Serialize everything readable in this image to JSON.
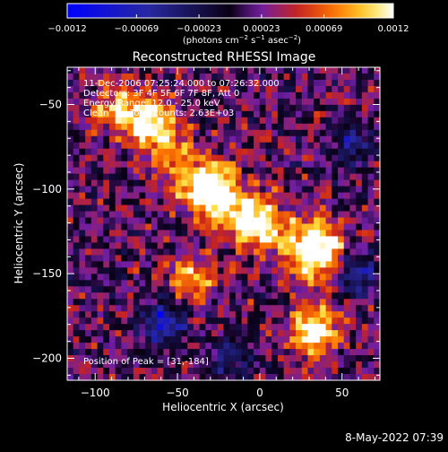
{
  "chart_data": {
    "type": "heatmap",
    "title": "Reconstructed RHESSI Image",
    "xlabel": "Heliocentric X (arcsec)",
    "ylabel": "Heliocentric Y (arcsec)",
    "xlim": [
      -117,
      73
    ],
    "ylim": [
      -213,
      -28
    ],
    "x_ticks": [
      -100,
      -50,
      0,
      50
    ],
    "y_ticks": [
      -200,
      -150,
      -100,
      -50
    ],
    "x_tick_labels": [
      "−100",
      "−50",
      "0",
      "50"
    ],
    "y_tick_labels": [
      "−200",
      "−150",
      "−100",
      "−50"
    ],
    "grid": false,
    "colorbar": {
      "min": -0.0012,
      "max": 0.0012,
      "ticks": [
        -0.0012,
        -0.00069,
        -0.00023,
        0.00023,
        0.00069,
        0.0012
      ],
      "tick_labels": [
        "−0.0012",
        "−0.00069",
        "−0.00023",
        "0.00023",
        "0.00069",
        "0.0012"
      ],
      "unit_parts": [
        "(photons cm",
        "−2",
        " s",
        "−1",
        " asec",
        "−2",
        ")"
      ],
      "colormap": [
        "#0000ff",
        "#000000",
        "#6b1da8",
        "#c8221e",
        "#ff7a00",
        "#ffffff"
      ]
    },
    "peak": {
      "x": 31,
      "y": -184
    },
    "features": {
      "ridge": [
        [
          -62,
          -65
        ],
        [
          -52,
          -82
        ],
        [
          -40,
          -98
        ],
        [
          -25,
          -108
        ],
        [
          -12,
          -115
        ],
        [
          0,
          -120
        ],
        [
          12,
          -128
        ],
        [
          25,
          -135
        ],
        [
          35,
          -145
        ]
      ],
      "hotspots": [
        {
          "x": 33,
          "y": -184,
          "v": 1.0
        },
        {
          "x": 36,
          "y": -133,
          "v": 0.92
        },
        {
          "x": -28,
          "y": -98,
          "v": 0.75
        },
        {
          "x": -42,
          "y": -153,
          "v": 0.68
        },
        {
          "x": -70,
          "y": -60,
          "v": 0.62
        },
        {
          "x": -88,
          "y": -52,
          "v": 0.55
        },
        {
          "x": -5,
          "y": -118,
          "v": 0.6
        }
      ],
      "blue_patches": [
        {
          "x": -58,
          "y": -178,
          "v": -0.85
        },
        {
          "x": 58,
          "y": -150,
          "v": -0.7
        },
        {
          "x": 55,
          "y": -75,
          "v": -0.55
        },
        {
          "x": -18,
          "y": -200,
          "v": -0.5
        }
      ]
    },
    "grid_cells": {
      "nx": 52,
      "ny": 50
    }
  },
  "annotations": {
    "time_range": "11-Dec-2006 07:25:24.000 to 07:26:32.000",
    "detectors": "Detectors: 3F 4F 5F 6F 7F 8F, Att 0",
    "energy_range": "Energy Range: 12.0 - 25.0 keV",
    "method": "Clean",
    "total_counts": "Total counts: 2.63E+03",
    "peak_label": "Position of Peak = [31,-184]"
  },
  "footer": {
    "date": "8-May-2022 07:39"
  }
}
